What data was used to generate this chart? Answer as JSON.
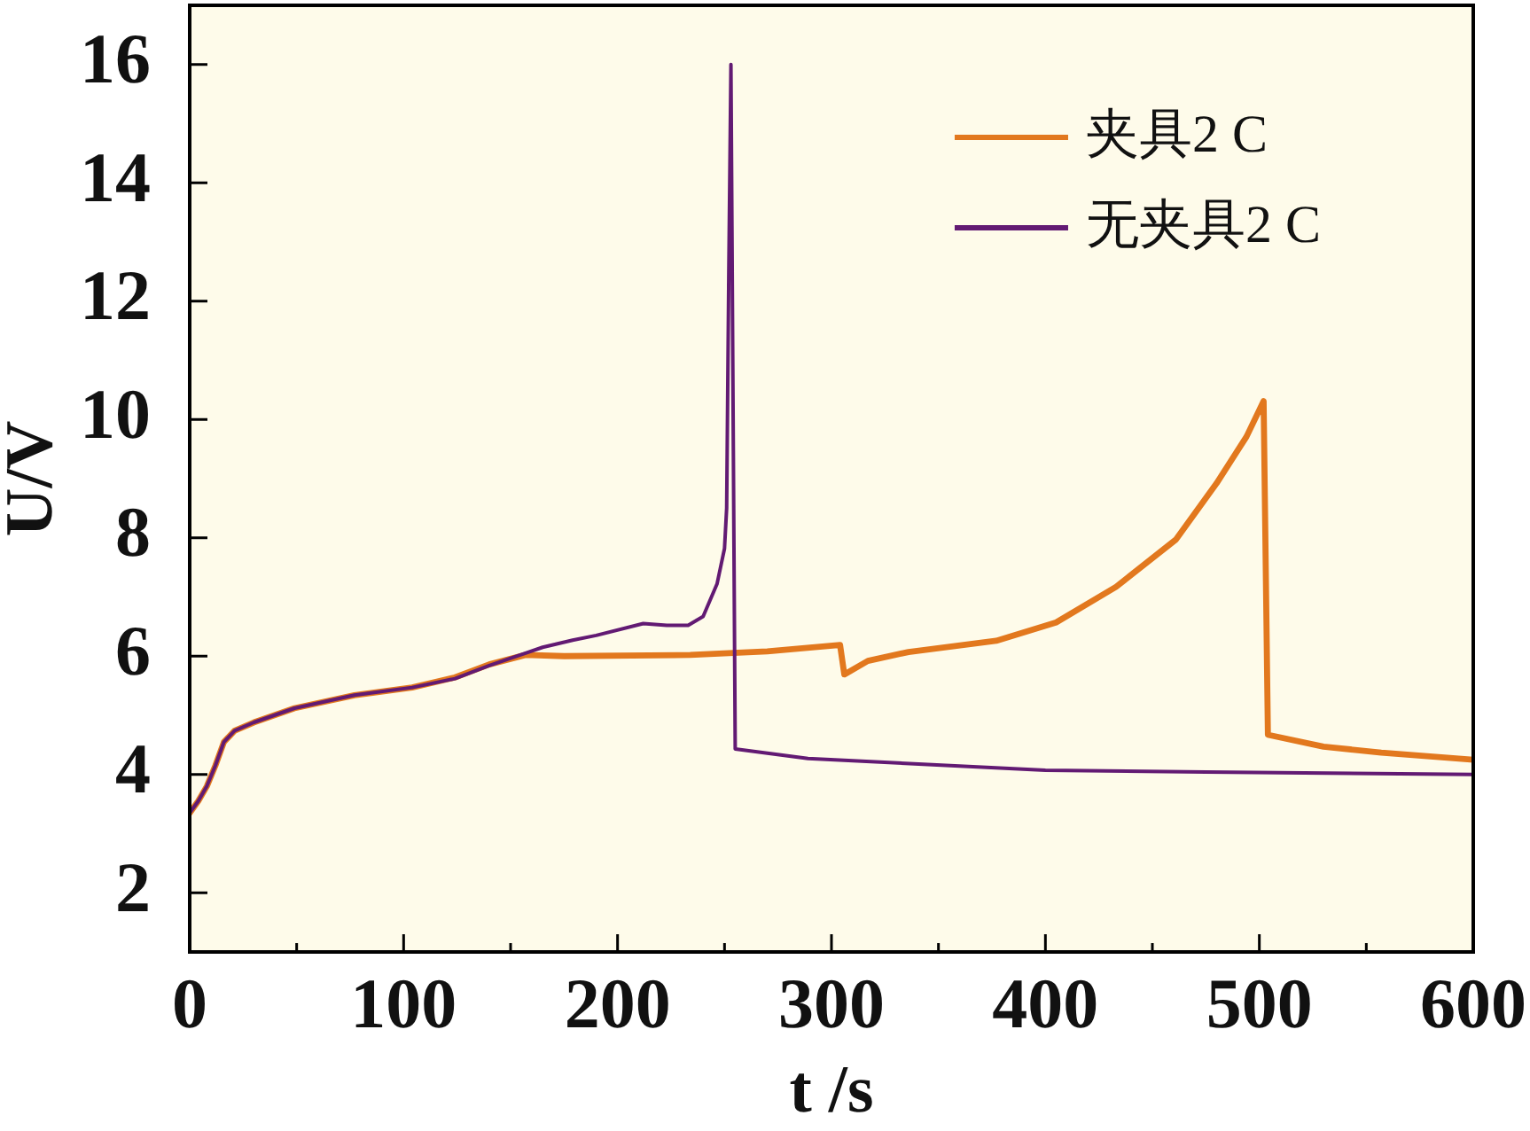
{
  "chart_data": {
    "type": "line",
    "xlabel": "t /s",
    "ylabel": "U/V",
    "xlim": [
      0,
      600
    ],
    "ylim": [
      1,
      17
    ],
    "xticks": [
      0,
      {
        "value": 50,
        "label": null
      },
      100,
      {
        "value": 150,
        "label": null
      },
      200,
      {
        "value": 250,
        "label": null
      },
      300,
      {
        "value": 350,
        "label": null
      },
      400,
      {
        "value": 450,
        "label": null
      },
      500,
      {
        "value": 550,
        "label": null
      },
      600
    ],
    "yticks": [
      2,
      4,
      6,
      8,
      10,
      12,
      14,
      16
    ],
    "legend": "top right",
    "series": [
      {
        "name": "夹具2 C",
        "color": "#e2781e",
        "x": [
          0,
          4,
          8,
          12,
          16,
          21,
          30,
          49,
          77,
          104,
          124,
          140,
          157,
          175,
          234,
          270,
          304,
          306,
          317,
          336,
          377,
          405,
          433,
          461,
          480,
          494,
          502,
          504,
          530,
          557,
          600
        ],
        "values": [
          3.35,
          3.55,
          3.8,
          4.15,
          4.55,
          4.74,
          4.88,
          5.12,
          5.34,
          5.47,
          5.64,
          5.86,
          6.02,
          6.0,
          6.02,
          6.08,
          6.19,
          5.69,
          5.92,
          6.07,
          6.26,
          6.57,
          7.17,
          7.97,
          8.92,
          9.71,
          10.31,
          4.67,
          4.47,
          4.37,
          4.25
        ]
      },
      {
        "name": "无夹具2 C",
        "color": "#621a73",
        "x": [
          0,
          4,
          8,
          12,
          16,
          21,
          30,
          49,
          77,
          104,
          124,
          140,
          157,
          165,
          179,
          190,
          212,
          223,
          233,
          240,
          246.5,
          250,
          251,
          252,
          253,
          255,
          289,
          345,
          400,
          475,
          600
        ],
        "values": [
          3.35,
          3.55,
          3.8,
          4.15,
          4.55,
          4.74,
          4.88,
          5.12,
          5.34,
          5.47,
          5.62,
          5.84,
          6.05,
          6.15,
          6.27,
          6.35,
          6.55,
          6.52,
          6.52,
          6.67,
          7.22,
          7.82,
          8.5,
          12.5,
          16.0,
          4.43,
          4.27,
          4.17,
          4.07,
          4.04,
          4.0
        ]
      }
    ]
  }
}
